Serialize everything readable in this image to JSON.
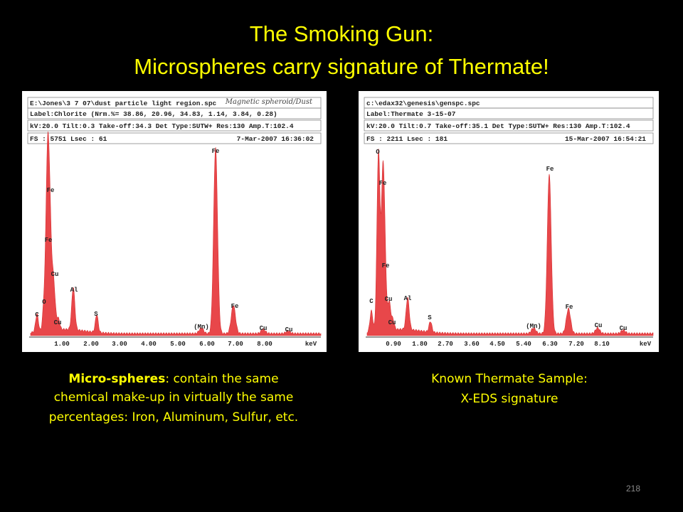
{
  "title": [
    "The Smoking Gun:",
    "Microspheres carry signature of Thermate!"
  ],
  "panels": [
    {
      "header": [
        "E:\\Jones\\3 7 07\\dust particle light region.spc",
        "Label:Chlorite (Nrm.%= 38.86, 20.96, 34.83, 1.14, 3.84, 0.28)",
        "kV:20.0 Tilt:0.3 Take-off:34.3  Det Type:SUTW+ Res:130 Amp.T:102.4",
        "FS : 5751  Lsec : 61"
      ],
      "date": "7-Mar-2007 16:36:02",
      "note": "Magnetic spheroid/Dust",
      "peak_labels": [
        "C",
        "O",
        "Fe",
        "Fe",
        "Cu",
        "Cu",
        "Al",
        "S",
        "(Mn)",
        "Fe",
        "Fe",
        "Cu",
        "Cu"
      ],
      "axis_labels": [
        "1.00",
        "2.00",
        "3.00",
        "4.00",
        "5.00",
        "6.00",
        "7.00",
        "8.00"
      ],
      "unit": "keV"
    },
    {
      "header": [
        "c:\\edax32\\genesis\\genspc.spc",
        "Label:Thermate 3-15-07",
        "kV:20.0 Tilt:0.7 Take-off:35.1  Det Type:SUTW+ Res:130 Amp.T:102.4",
        "FS : 2211  Lsec : 181"
      ],
      "date": "15-Mar-2007 16:54:21",
      "peak_labels": [
        "O",
        "Fe",
        "Fe",
        "C",
        "Cu",
        "Cu",
        "Al",
        "S",
        "(Mn)",
        "Fe",
        "Fe",
        "Cu",
        "Cu"
      ],
      "axis_labels": [
        "0.90",
        "1.80",
        "2.70",
        "3.60",
        "4.50",
        "5.40",
        "6.30",
        "7.20",
        "8.10"
      ],
      "unit": "keV"
    }
  ],
  "caption_left": {
    "bold": "Micro-spheres",
    "lines": [
      ":  contain the same",
      "chemical make-up in virtually the same",
      "percentages: Iron, Aluminum, Sulfur, etc."
    ]
  },
  "caption_right": [
    "Known Thermate Sample:",
    "X-EDS signature"
  ],
  "page_number": "218"
}
